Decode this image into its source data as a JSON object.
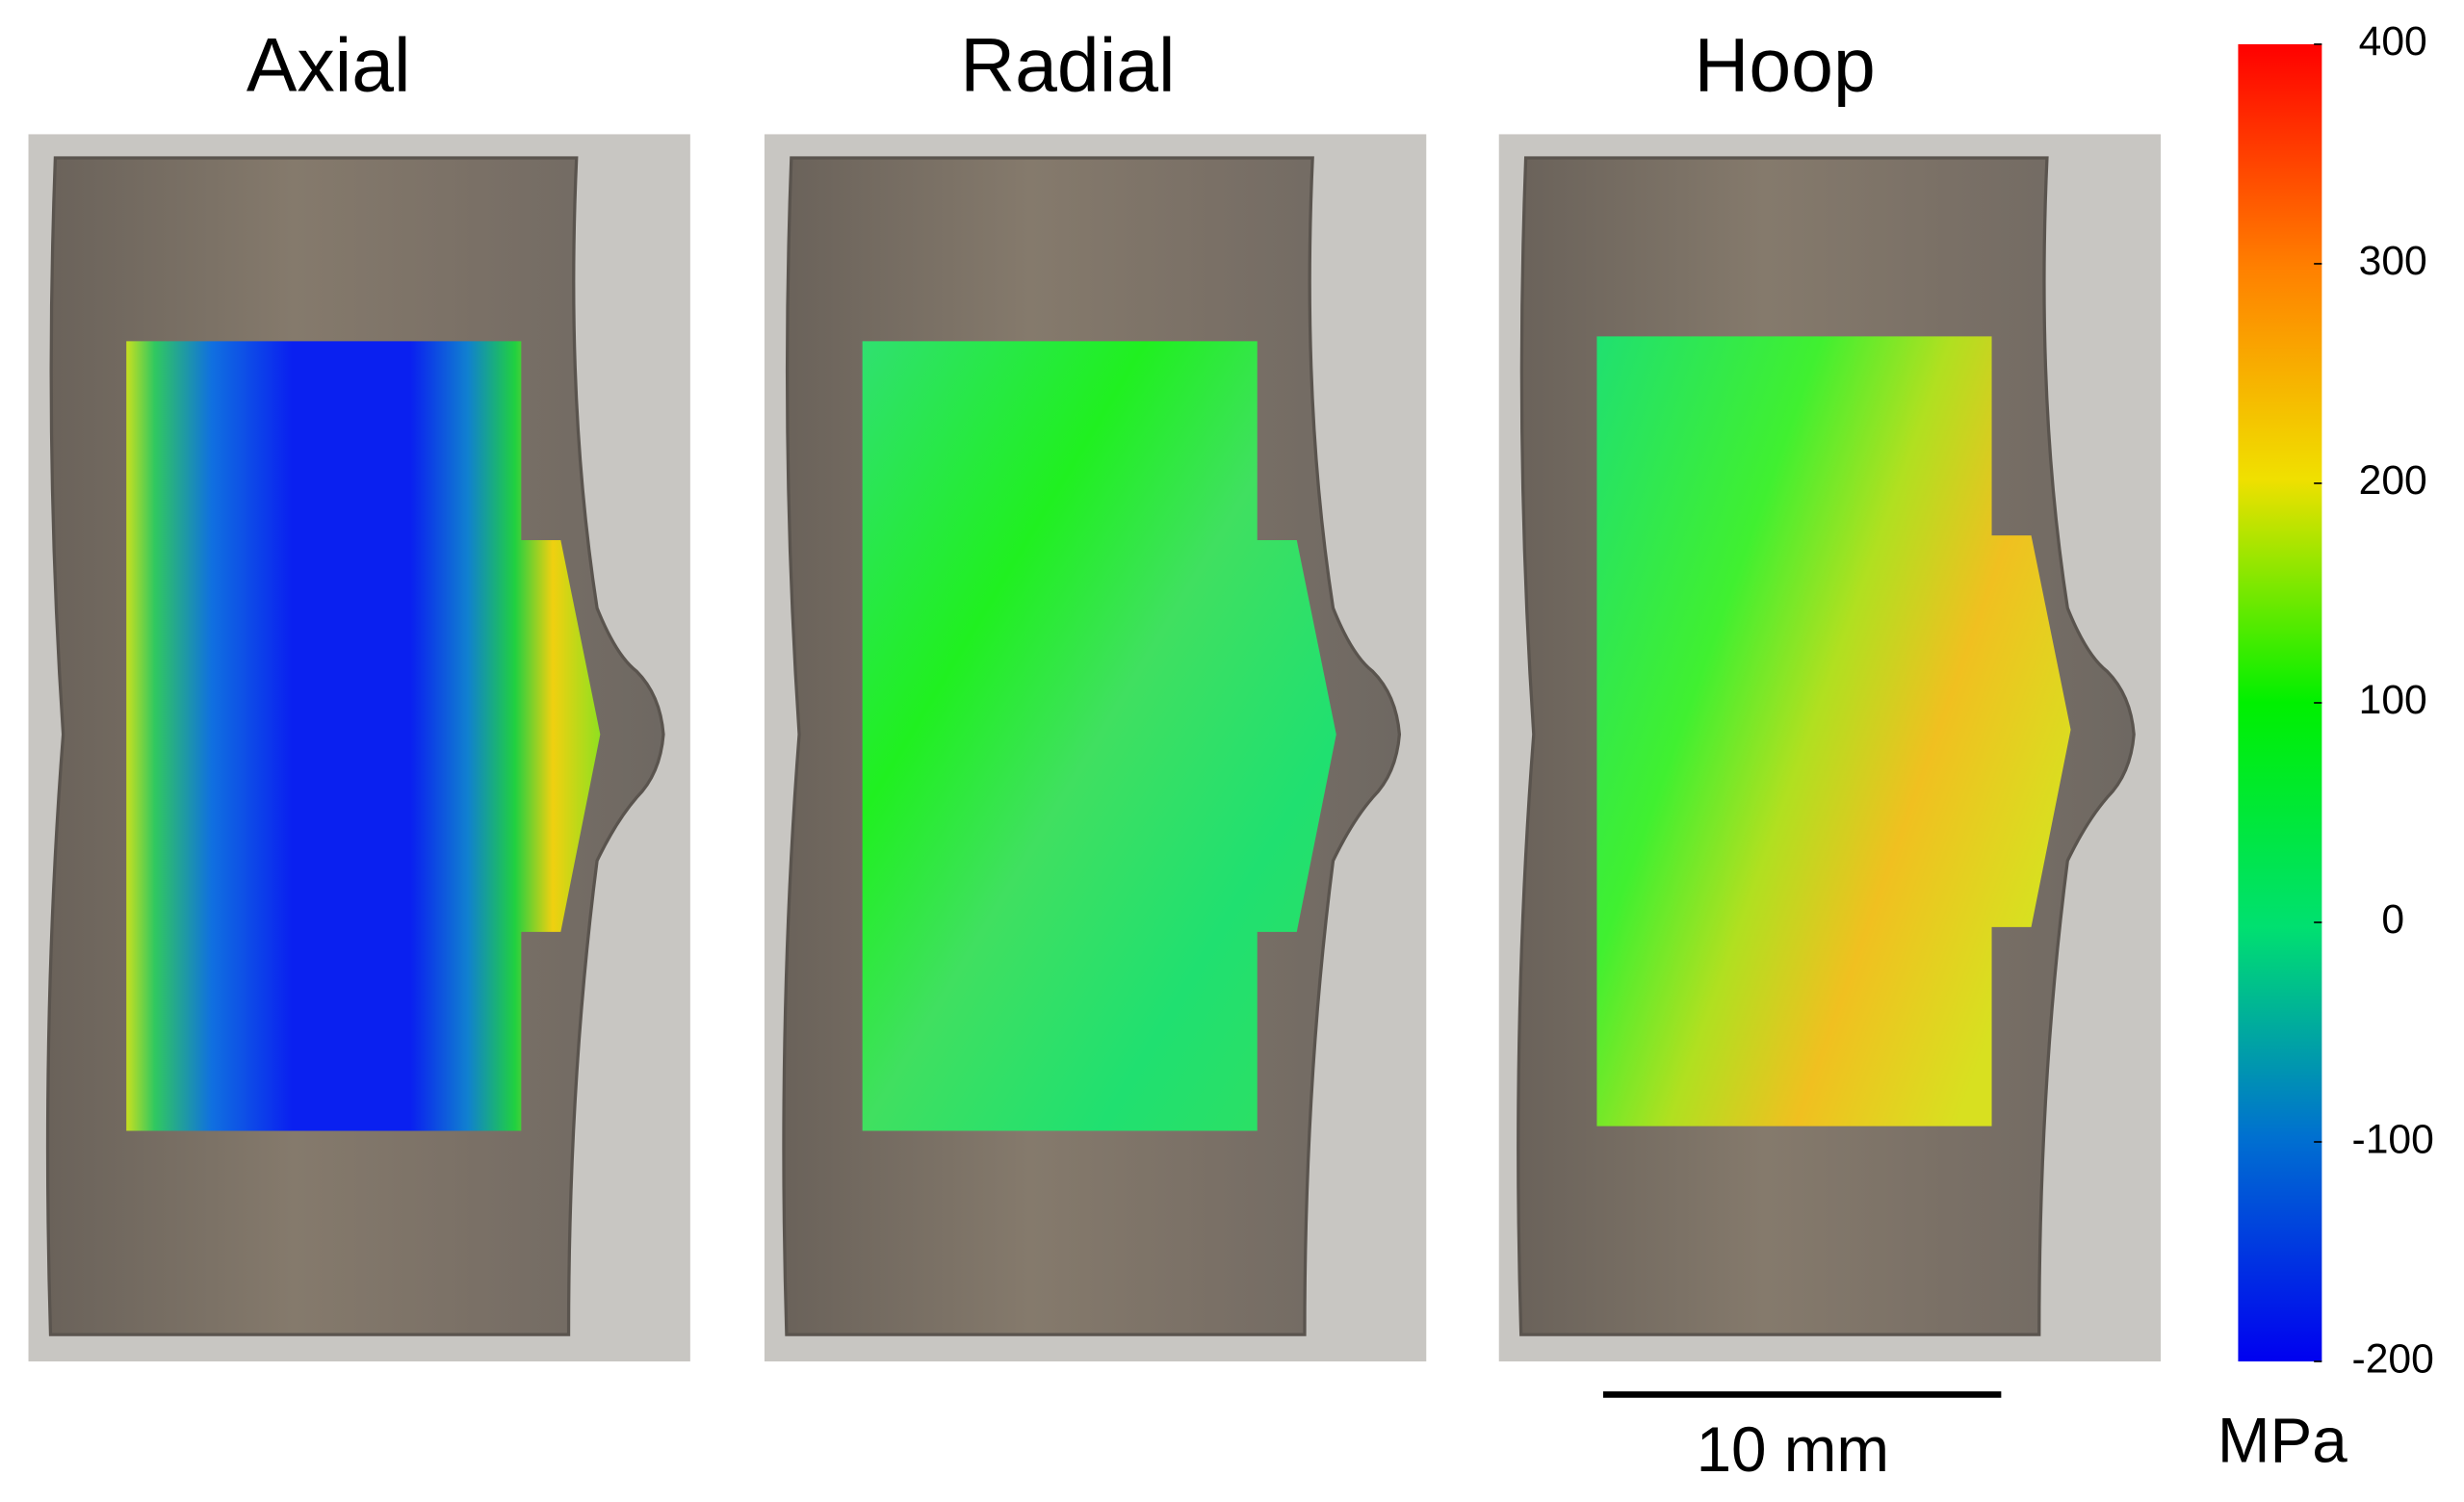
{
  "panels": [
    {
      "title": "Axial"
    },
    {
      "title": "Radial"
    },
    {
      "title": "Hoop"
    }
  ],
  "colorbar": {
    "unit": "MPa",
    "lim": [
      -200,
      400
    ],
    "ticks": [
      400,
      300,
      200,
      100,
      0,
      -100,
      -200
    ]
  },
  "scale_bar": {
    "label": "10 mm"
  }
}
